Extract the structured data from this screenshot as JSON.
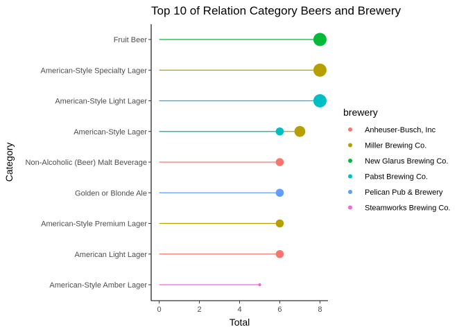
{
  "chart_data": {
    "type": "lollipop",
    "title": "Top 10 of  Relation Category Beers and Brewery",
    "xlabel": "Total",
    "ylabel": "Category",
    "xlim": [
      -0.4,
      8.4
    ],
    "x_ticks": [
      0,
      2,
      4,
      6,
      8
    ],
    "grid": false,
    "categories": [
      "Fruit Beer",
      "American-Style Specialty Lager",
      "American-Style Light Lager",
      "American-Style Lager",
      "Non-Alcoholic (Beer) Malt Beverage",
      "Golden or Blonde Ale",
      "American-Style Premium Lager",
      "American Light Lager",
      "American-Style Amber Lager"
    ],
    "legend": {
      "title": "brewery",
      "placement": "right",
      "entries": [
        {
          "name": "Anheuser-Busch, Inc",
          "color": "#F8766D"
        },
        {
          "name": "Miller Brewing Co.",
          "color": "#B79F00"
        },
        {
          "name": "New Glarus Brewing Co.",
          "color": "#00BA38"
        },
        {
          "name": "Pabst Brewing Co.",
          "color": "#00BFC4"
        },
        {
          "name": "Pelican Pub & Brewery",
          "color": "#619CFF"
        },
        {
          "name": "Steamworks Brewing Co.",
          "color": "#F564E3"
        }
      ]
    },
    "points": [
      {
        "category": "Fruit Beer",
        "brewery": "New Glarus Brewing Co.",
        "value": 8
      },
      {
        "category": "American-Style Specialty Lager",
        "brewery": "Miller Brewing Co.",
        "value": 8
      },
      {
        "category": "American-Style Light Lager",
        "brewery": "Pabst Brewing Co.",
        "value": 8
      },
      {
        "category": "American-Style Lager",
        "brewery": "Miller Brewing Co.",
        "value": 7
      },
      {
        "category": "American-Style Lager",
        "brewery": "Pabst Brewing Co.",
        "value": 6
      },
      {
        "category": "Non-Alcoholic (Beer) Malt Beverage",
        "brewery": "Anheuser-Busch, Inc",
        "value": 6
      },
      {
        "category": "Golden or Blonde Ale",
        "brewery": "Pelican Pub & Brewery",
        "value": 6
      },
      {
        "category": "American-Style Premium Lager",
        "brewery": "Miller Brewing Co.",
        "value": 6
      },
      {
        "category": "American Light Lager",
        "brewery": "Anheuser-Busch, Inc",
        "value": 6
      },
      {
        "category": "American-Style Amber Lager",
        "brewery": "Steamworks Brewing Co.",
        "value": 5
      }
    ]
  }
}
